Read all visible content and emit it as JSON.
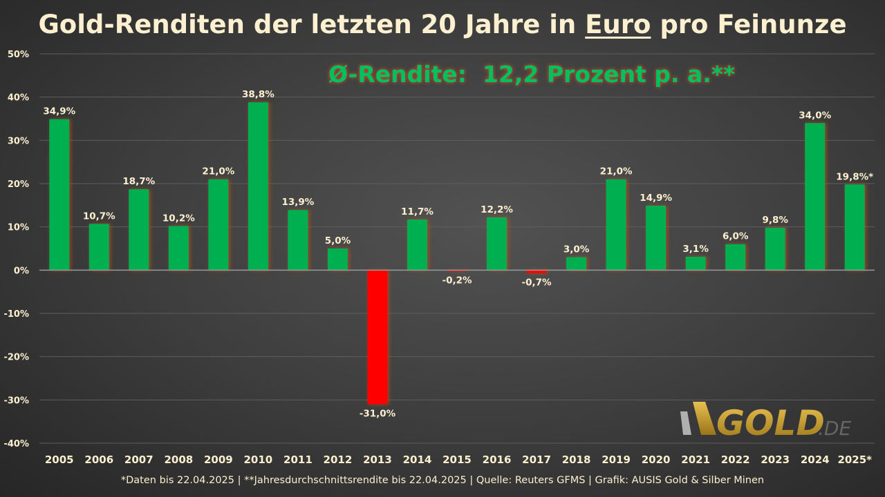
{
  "chart_data": {
    "type": "bar",
    "title_parts": [
      "Gold-Renditen der letzten 20 Jahre in ",
      "Euro",
      " pro Feinunze"
    ],
    "subtitle": "Ø-Rendite:  12,2 Prozent p. a.**",
    "categories": [
      "2005",
      "2006",
      "2007",
      "2008",
      "2009",
      "2010",
      "2011",
      "2012",
      "2013",
      "2014",
      "2015",
      "2016",
      "2017",
      "2018",
      "2019",
      "2020",
      "2021",
      "2022",
      "2023",
      "2024",
      "2025*"
    ],
    "values": [
      34.9,
      10.7,
      18.7,
      10.2,
      21.0,
      38.8,
      13.9,
      5.0,
      -31.0,
      11.7,
      -0.2,
      12.2,
      -0.7,
      3.0,
      21.0,
      14.9,
      3.1,
      6.0,
      9.8,
      34.0,
      19.8
    ],
    "data_labels": [
      "34,9%",
      "10,7%",
      "18,7%",
      "10,2%",
      "21,0%",
      "38,8%",
      "13,9%",
      "5,0%",
      "-31,0%",
      "11,7%",
      "-0,2%",
      "12,2%",
      "-0,7%",
      "3,0%",
      "21,0%",
      "14,9%",
      "3,1%",
      "6,0%",
      "9,8%",
      "34,0%",
      "19,8%*"
    ],
    "ylim": [
      -40,
      50
    ],
    "yticks": [
      50,
      40,
      30,
      20,
      10,
      0,
      -10,
      -20,
      -30,
      -40
    ],
    "ytick_labels": [
      "50%",
      "40%",
      "30%",
      "20%",
      "10%",
      "0%",
      "-10%",
      "-20%",
      "-30%",
      "-40%"
    ],
    "grid": true,
    "colors": {
      "positive": "#00b050",
      "negative": "#ff0000",
      "text": "#fdf0d0",
      "subtitle": "#00c060"
    },
    "xlabel": "",
    "ylabel": ""
  },
  "footer": "*Daten bis 22.04.2025 | **Jahresdurchschnittsrendite bis 22.04.2025 | Quelle: Reuters GFMS | Grafik: AUSIS Gold & Silber Minen",
  "logo": {
    "text": "GOLD",
    "suffix": ".DE"
  }
}
